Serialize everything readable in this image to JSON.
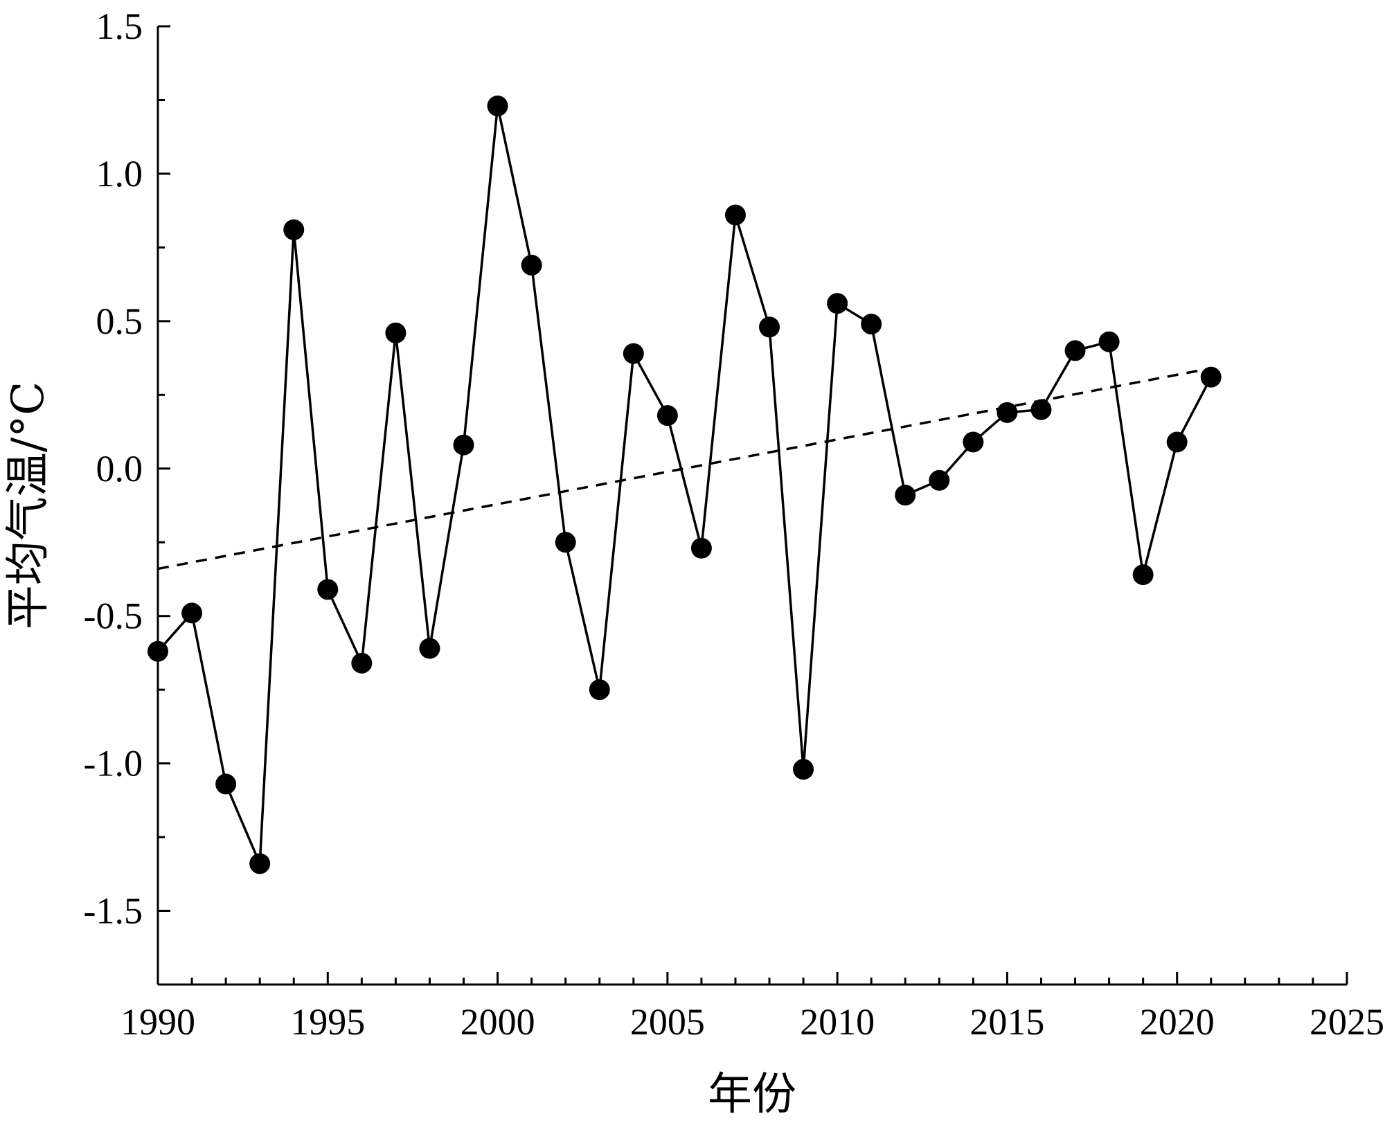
{
  "chart_data": {
    "type": "line",
    "title": "",
    "xlabel": "年份",
    "ylabel": "平均气温/°C",
    "xlim": [
      1990,
      2025
    ],
    "ylim": [
      -1.75,
      1.5
    ],
    "x_ticks": [
      1990,
      1995,
      2000,
      2005,
      2010,
      2015,
      2020,
      2025
    ],
    "y_ticks": [
      1.5,
      1.0,
      0.5,
      0.0,
      -0.5,
      -1.0,
      -1.5
    ],
    "y_tick_labels": [
      "1.5",
      "1.0",
      "0.5",
      "0.0",
      "-0.5",
      "-1.0",
      "-1.5"
    ],
    "grid": false,
    "series": [
      {
        "x": [
          1990,
          1991,
          1992,
          1993,
          1994,
          1995,
          1996,
          1997,
          1998,
          1999,
          2000,
          2001,
          2002,
          2003,
          2004,
          2005,
          2006,
          2007,
          2008,
          2009,
          2010,
          2011,
          2012,
          2013,
          2014,
          2015,
          2016,
          2017,
          2018,
          2019,
          2020,
          2021
        ],
        "values": [
          -0.62,
          -0.49,
          -1.07,
          -1.34,
          0.81,
          -0.41,
          -0.66,
          0.46,
          -0.61,
          0.08,
          1.23,
          0.69,
          -0.25,
          -0.75,
          0.39,
          0.18,
          -0.27,
          0.86,
          0.48,
          -1.02,
          0.56,
          0.49,
          -0.09,
          -0.04,
          0.09,
          0.19,
          0.2,
          0.4,
          0.43,
          -0.36,
          0.09,
          0.31
        ],
        "style": "solid line with filled circle markers",
        "color": "#000000"
      }
    ],
    "trendline": {
      "style": "dashed",
      "x": [
        1990,
        2021
      ],
      "values": [
        -0.34,
        0.34
      ]
    }
  }
}
